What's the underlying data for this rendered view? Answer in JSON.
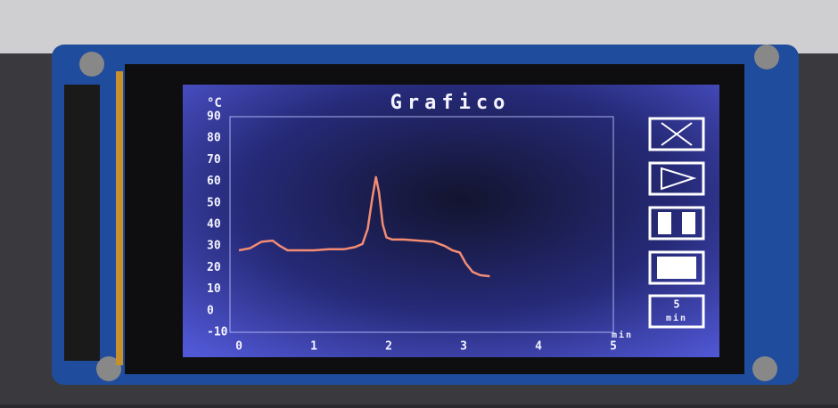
{
  "chart_data": {
    "type": "line",
    "title": "Grafico",
    "y_label": "°C",
    "x_label": "min",
    "x": [
      0,
      0.15,
      0.3,
      0.45,
      0.55,
      0.65,
      0.8,
      1.0,
      1.2,
      1.4,
      1.55,
      1.65,
      1.72,
      1.78,
      1.83,
      1.87,
      1.92,
      1.97,
      2.05,
      2.2,
      2.4,
      2.6,
      2.75,
      2.85,
      2.95,
      3.03,
      3.12,
      3.22,
      3.35
    ],
    "values": [
      28,
      29,
      32,
      32.5,
      30,
      28,
      28,
      28,
      28.5,
      28.5,
      29.5,
      31,
      38,
      52,
      62,
      55,
      40,
      34,
      33,
      33,
      32.5,
      32,
      30,
      28,
      27,
      22,
      18,
      16.5,
      16
    ],
    "color": "#f48c74",
    "xlim": [
      0,
      5
    ],
    "xticks": [
      0,
      1,
      2,
      3,
      4,
      5
    ],
    "ylim": [
      -10,
      90
    ],
    "yticks": [
      -10,
      0,
      10,
      20,
      30,
      40,
      50,
      60,
      70,
      80,
      90
    ],
    "grid": false
  },
  "controls": {
    "range_button": [
      "5",
      "min"
    ]
  }
}
